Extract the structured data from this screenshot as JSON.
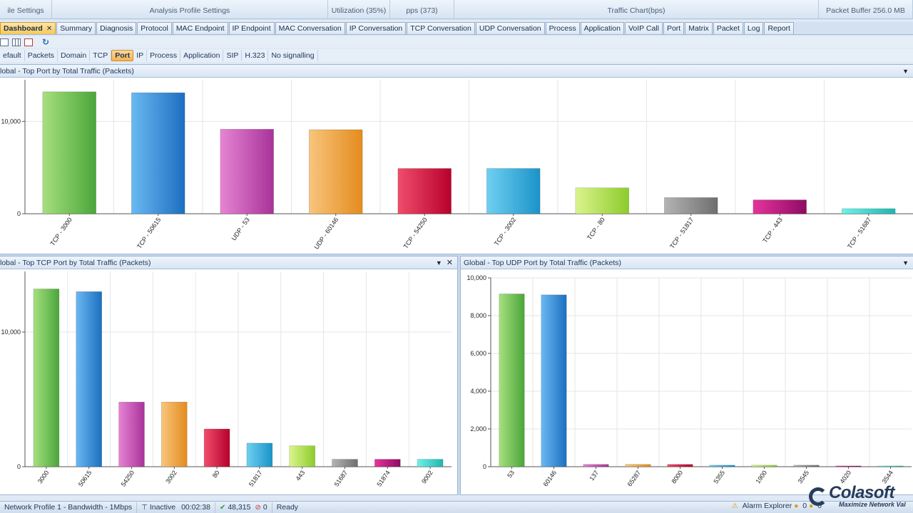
{
  "ribbon": {
    "groups": [
      {
        "label": "ile Settings",
        "width": 73
      },
      {
        "label": "Analysis Profile Settings",
        "width": 387
      },
      {
        "label": "Utilization (35%)",
        "width": 87
      },
      {
        "label": "pps (373)",
        "width": 90
      },
      {
        "label": "Traffic Chart(bps)",
        "width": 511
      },
      {
        "label": "Packet Buffer 256.0 MB",
        "width": 132
      }
    ]
  },
  "tabs": [
    {
      "label": "Dashboard",
      "active": true,
      "closable": true
    },
    {
      "label": "Summary"
    },
    {
      "label": "Diagnosis"
    },
    {
      "label": "Protocol"
    },
    {
      "label": "MAC Endpoint"
    },
    {
      "label": "IP Endpoint"
    },
    {
      "label": "MAC Conversation"
    },
    {
      "label": "IP Conversation"
    },
    {
      "label": "TCP Conversation"
    },
    {
      "label": "UDP Conversation"
    },
    {
      "label": "Process"
    },
    {
      "label": "Application"
    },
    {
      "label": "VoIP Call"
    },
    {
      "label": "Port"
    },
    {
      "label": "Matrix"
    },
    {
      "label": "Packet"
    },
    {
      "label": "Log"
    },
    {
      "label": "Report"
    }
  ],
  "subtabs": [
    {
      "label": "efault"
    },
    {
      "label": "Packets"
    },
    {
      "label": "Domain"
    },
    {
      "label": "TCP"
    },
    {
      "label": "Port",
      "active": true
    },
    {
      "label": "IP"
    },
    {
      "label": "Process"
    },
    {
      "label": "Application"
    },
    {
      "label": "SIP"
    },
    {
      "label": "H.323"
    },
    {
      "label": "No signalling"
    }
  ],
  "panels": {
    "top": {
      "title": "lobal - Top Port by Total Traffic (Packets)"
    },
    "left": {
      "title": "lobal - Top TCP Port by Total Traffic (Packets)"
    },
    "right": {
      "title": "Global - Top UDP Port by Total Traffic (Packets)"
    }
  },
  "colors": {
    "bars": [
      [
        "#a6e07e",
        "#4aa63a"
      ],
      [
        "#6ab9f2",
        "#1c6fc0"
      ],
      [
        "#e684d3",
        "#a8339a"
      ],
      [
        "#f8c57d",
        "#e48c1e"
      ],
      [
        "#f04d6c",
        "#b8002c"
      ],
      [
        "#6fd0f2",
        "#1a93c8"
      ],
      [
        "#dbf48c",
        "#8ccc2c"
      ],
      [
        "#b4b4b4",
        "#6e6e6e"
      ],
      [
        "#e6339d",
        "#8d0c62"
      ],
      [
        "#6ef2e8",
        "#20b6b0"
      ]
    ]
  },
  "chart_data": [
    {
      "type": "bar",
      "categories": [
        "TCP - 3000",
        "TCP - 50615",
        "UDP - 53",
        "UDP - 60146",
        "TCP - 54250",
        "TCP - 3002",
        "TCP - 80",
        "TCP - 51817",
        "TCP - 443",
        "TCP - 51687"
      ],
      "values": [
        13200,
        13100,
        9150,
        9100,
        4900,
        4900,
        2800,
        1750,
        1500,
        550
      ],
      "ylim": [
        0,
        14500
      ],
      "yticks": [
        0,
        10000
      ],
      "ytick_labels": [
        "0",
        "10,000"
      ],
      "grid": true
    },
    {
      "type": "bar",
      "categories": [
        "3000",
        "50615",
        "54250",
        "3002",
        "80",
        "51817",
        "443",
        "51687",
        "51874",
        "9002"
      ],
      "values": [
        13200,
        13000,
        4800,
        4800,
        2800,
        1750,
        1550,
        550,
        550,
        550
      ],
      "ylim": [
        0,
        14500
      ],
      "yticks": [
        0,
        10000
      ],
      "ytick_labels": [
        "0",
        "10,000"
      ],
      "grid": true
    },
    {
      "type": "bar",
      "categories": [
        "53",
        "60146",
        "137",
        "65287",
        "8000",
        "5355",
        "1900",
        "3545",
        "4020",
        "3544"
      ],
      "values": [
        9150,
        9100,
        120,
        120,
        120,
        80,
        80,
        80,
        40,
        40
      ],
      "ylim": [
        0,
        10000
      ],
      "yticks": [
        0,
        2000,
        4000,
        6000,
        8000,
        10000
      ],
      "ytick_labels": [
        "0",
        "2,000",
        "4,000",
        "6,000",
        "8,000",
        "10,000"
      ],
      "grid": true
    }
  ],
  "status": {
    "profile": "Network Profile 1 - Bandwidth - 1Mbps",
    "state": "Inactive",
    "elapsed": "00:02:38",
    "packets": "48,315",
    "dropped": "0",
    "ready": "Ready",
    "alarm": "Alarm Explorer",
    "alarm_counts": [
      "0",
      "0"
    ]
  },
  "brand": {
    "name": "Colasoft",
    "tagline": "Maximize Network Val"
  }
}
